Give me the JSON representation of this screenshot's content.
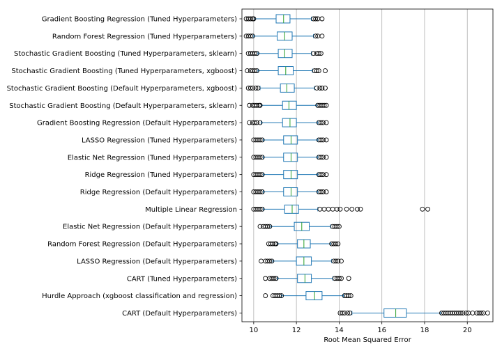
{
  "chart_data": {
    "type": "boxplot",
    "orientation": "horizontal",
    "xlabel": "Root Mean Squared Error",
    "ylabel": "",
    "title": "",
    "xlim": [
      9.45,
      21.2
    ],
    "xticks": [
      10,
      12,
      14,
      16,
      18,
      20
    ],
    "grid": "vertical",
    "colors": {
      "box": "#1f77b4",
      "median": "#2ca02c",
      "outlier": "#000000",
      "grid": "#b0b0b0"
    },
    "categories": [
      "Gradient Boosting Regression (Tuned Hyperparameters)",
      "Random Forest Regression (Tuned Hyperparameters)",
      "Stochastic Gradient Boosting (Tuned Hyperparameters, sklearn)",
      "Stochastic Gradient Boosting (Tuned Hyperparameters, xgboost)",
      "Stochastic Gradient Boosting (Default Hyperparameters, xgboost)",
      "Stochastic Gradient Boosting (Default Hyperparameters, sklearn)",
      "Gradient Boosting Regression (Default Hyperparameters)",
      "LASSO Regression (Tuned Hyperparameters)",
      "Elastic Net Regression (Tuned Hyperparameters)",
      "Ridge Regression (Tuned Hyperparameters)",
      "Ridge Regression (Default Hyperparameters)",
      "Multiple Linear Regression",
      "Elastic Net Regression (Default Hyperparameters)",
      "Random Forest Regression (Default Hyperparameters)",
      "LASSO Regression (Default Hyperparameters)",
      "CART (Tuned Hyperparameters)",
      "Hurdle Approach (xgboost classification and regression)",
      "CART (Default Hyperparameters)"
    ],
    "boxes": [
      {
        "whislo": 10.05,
        "q1": 11.05,
        "med": 11.4,
        "q3": 11.7,
        "whishi": 12.7,
        "fliers_low": [
          9.65,
          9.75,
          9.85,
          9.95,
          10.0
        ],
        "fliers_high": [
          12.8,
          12.9,
          13.0,
          13.2
        ]
      },
      {
        "whislo": 10.0,
        "q1": 11.1,
        "med": 11.45,
        "q3": 11.8,
        "whishi": 12.8,
        "fliers_low": [
          9.65,
          9.75,
          9.85,
          9.95
        ],
        "fliers_high": [
          12.9,
          13.0,
          13.2
        ]
      },
      {
        "whislo": 10.2,
        "q1": 11.15,
        "med": 11.45,
        "q3": 11.8,
        "whishi": 12.7,
        "fliers_low": [
          9.75,
          9.85,
          9.95,
          10.05,
          10.15
        ],
        "fliers_high": [
          12.8,
          12.95,
          13.05,
          13.15
        ]
      },
      {
        "whislo": 10.2,
        "q1": 11.15,
        "med": 11.5,
        "q3": 11.85,
        "whishi": 12.75,
        "fliers_low": [
          9.7,
          9.85,
          9.95,
          10.05,
          10.15
        ],
        "fliers_high": [
          12.85,
          12.95,
          13.05,
          13.35
        ]
      },
      {
        "whislo": 10.3,
        "q1": 11.25,
        "med": 11.55,
        "q3": 11.9,
        "whishi": 12.85,
        "fliers_low": [
          9.75,
          9.85,
          9.95,
          10.1,
          10.2
        ],
        "fliers_high": [
          12.95,
          13.1,
          13.2,
          13.35
        ]
      },
      {
        "whislo": 10.35,
        "q1": 11.35,
        "med": 11.65,
        "q3": 12.0,
        "whishi": 12.95,
        "fliers_low": [
          9.8,
          9.95,
          10.05,
          10.15,
          10.25,
          10.3
        ],
        "fliers_high": [
          13.0,
          13.1,
          13.2,
          13.3,
          13.4
        ]
      },
      {
        "whislo": 10.35,
        "q1": 11.35,
        "med": 11.7,
        "q3": 12.0,
        "whishi": 13.0,
        "fliers_low": [
          9.8,
          9.95,
          10.05,
          10.15,
          10.3
        ],
        "fliers_high": [
          13.05,
          13.15,
          13.25,
          13.4
        ]
      },
      {
        "whislo": 10.45,
        "q1": 11.4,
        "med": 11.75,
        "q3": 12.05,
        "whishi": 13.0,
        "fliers_low": [
          10.0,
          10.1,
          10.2,
          10.3,
          10.4
        ],
        "fliers_high": [
          13.05,
          13.15,
          13.25,
          13.4
        ]
      },
      {
        "whislo": 10.45,
        "q1": 11.4,
        "med": 11.75,
        "q3": 12.05,
        "whishi": 13.0,
        "fliers_low": [
          10.0,
          10.1,
          10.2,
          10.3,
          10.4
        ],
        "fliers_high": [
          13.05,
          13.15,
          13.25,
          13.4
        ]
      },
      {
        "whislo": 10.45,
        "q1": 11.4,
        "med": 11.75,
        "q3": 12.05,
        "whishi": 13.0,
        "fliers_low": [
          10.0,
          10.1,
          10.2,
          10.3,
          10.4
        ],
        "fliers_high": [
          13.05,
          13.15,
          13.25,
          13.4
        ]
      },
      {
        "whislo": 10.45,
        "q1": 11.4,
        "med": 11.75,
        "q3": 12.05,
        "whishi": 13.0,
        "fliers_low": [
          10.0,
          10.1,
          10.2,
          10.3,
          10.4
        ],
        "fliers_high": [
          13.05,
          13.15,
          13.25,
          13.4
        ]
      },
      {
        "whislo": 10.45,
        "q1": 11.45,
        "med": 11.8,
        "q3": 12.1,
        "whishi": 13.0,
        "fliers_low": [
          10.0,
          10.1,
          10.2,
          10.3,
          10.4
        ],
        "fliers_high": [
          13.1,
          13.3,
          13.5,
          13.7,
          13.9,
          14.05,
          14.35,
          14.6,
          14.85,
          15.0,
          17.9,
          18.15
        ]
      },
      {
        "whislo": 10.8,
        "q1": 11.9,
        "med": 12.25,
        "q3": 12.6,
        "whishi": 13.6,
        "fliers_low": [
          10.3,
          10.45,
          10.55,
          10.65,
          10.75
        ],
        "fliers_high": [
          13.7,
          13.8,
          13.9,
          14.0
        ]
      },
      {
        "whislo": 11.1,
        "q1": 12.05,
        "med": 12.35,
        "q3": 12.65,
        "whishi": 13.6,
        "fliers_low": [
          10.7,
          10.8,
          10.9,
          11.0,
          11.05
        ],
        "fliers_high": [
          13.65,
          13.75,
          13.85,
          13.95
        ]
      },
      {
        "whislo": 10.9,
        "q1": 12.0,
        "med": 12.35,
        "q3": 12.7,
        "whishi": 13.65,
        "fliers_low": [
          10.35,
          10.55,
          10.65,
          10.75,
          10.85
        ],
        "fliers_high": [
          13.75,
          13.85,
          13.95,
          14.1
        ]
      },
      {
        "whislo": 11.1,
        "q1": 12.05,
        "med": 12.4,
        "q3": 12.7,
        "whishi": 13.7,
        "fliers_low": [
          10.55,
          10.75,
          10.85,
          10.95,
          11.05
        ],
        "fliers_high": [
          13.8,
          13.9,
          14.0,
          14.1,
          14.45
        ]
      },
      {
        "whislo": 11.3,
        "q1": 12.45,
        "med": 12.85,
        "q3": 13.2,
        "whishi": 14.2,
        "fliers_low": [
          10.55,
          10.9,
          11.0,
          11.1,
          11.2,
          11.3
        ],
        "fliers_high": [
          14.25,
          14.35,
          14.45,
          14.55
        ]
      },
      {
        "whislo": 14.6,
        "q1": 16.1,
        "med": 16.65,
        "q3": 17.15,
        "whishi": 18.75,
        "fliers_low": [
          14.05,
          14.15,
          14.25,
          14.4,
          14.5
        ],
        "fliers_high": [
          18.8,
          18.9,
          19.0,
          19.1,
          19.2,
          19.3,
          19.4,
          19.5,
          19.6,
          19.7,
          19.8,
          19.95,
          20.05,
          20.25,
          20.45,
          20.55,
          20.65,
          20.75,
          20.95
        ]
      }
    ]
  }
}
